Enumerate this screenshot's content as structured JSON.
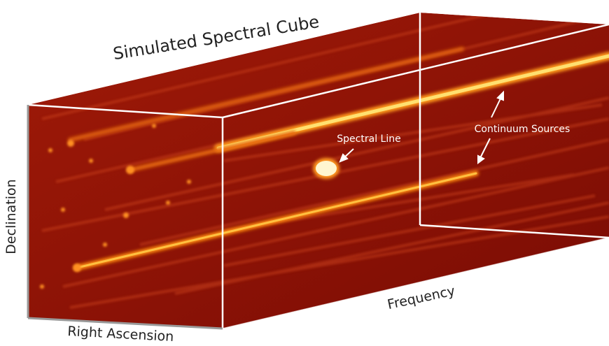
{
  "title": "Simulated Spectral Cube",
  "annotations": {
    "spectral_line": "Spectral Line",
    "continuum_sources": "Continuum Sources"
  },
  "axes": {
    "declination": "Declination",
    "right_ascension": "Right Ascension",
    "frequency": "Frequency"
  }
}
